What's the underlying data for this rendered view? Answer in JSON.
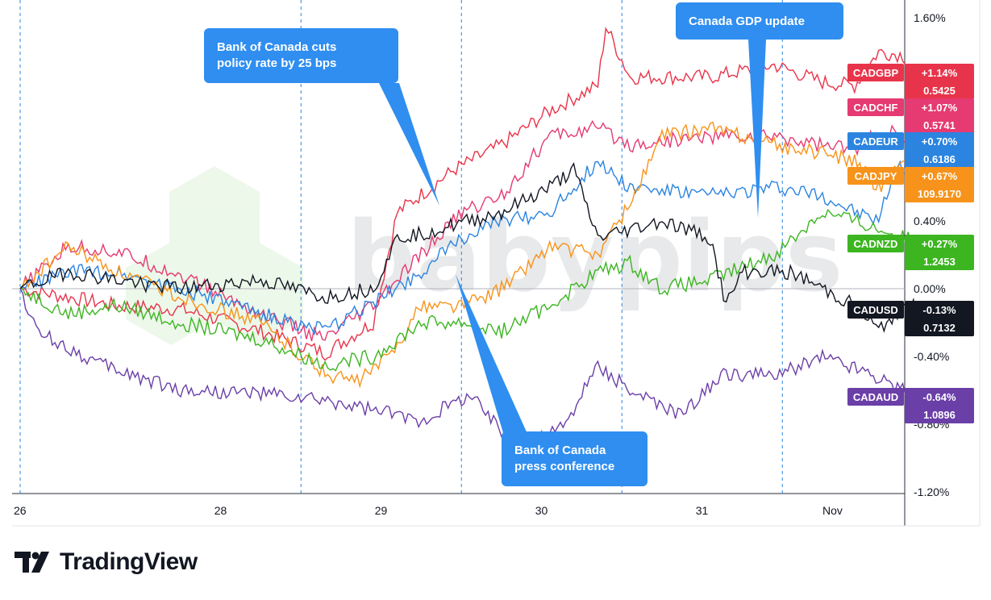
{
  "brand": {
    "name": "TradingView",
    "watermark": "babypips"
  },
  "chart_data": {
    "type": "line",
    "x_tick_labels": [
      "26",
      "28",
      "29",
      "30",
      "31",
      "Nov"
    ],
    "y_tick_labels": [
      "1.60%",
      "0.40%",
      "0.00%",
      "-0.40%",
      "-0.80%",
      "-1.20%"
    ],
    "y_ticks": [
      1.6,
      0.4,
      0.0,
      -0.4,
      -0.8,
      -1.2
    ],
    "ylim": [
      -1.2,
      1.6
    ],
    "event_days": [
      26,
      27.75,
      28.75,
      29.75,
      30.75
    ],
    "annotations": [
      {
        "text_line1": "Bank of Canada cuts",
        "text_line2": "policy rate by 25 bps"
      },
      {
        "text_line1": "Bank of Canada",
        "text_line2": "press conference"
      },
      {
        "text_line1": "Canada GDP update",
        "text_line2": ""
      }
    ],
    "series": [
      {
        "name": "CADGBP",
        "change": "+1.14%",
        "price": "0.5425",
        "color": "#e8344a",
        "values": [
          [
            26,
            0
          ],
          [
            26.3,
            -0.05
          ],
          [
            26.6,
            -0.1
          ],
          [
            27,
            -0.12
          ],
          [
            27.5,
            -0.25
          ],
          [
            27.9,
            -0.38
          ],
          [
            28.2,
            -0.2
          ],
          [
            28.35,
            0.45
          ],
          [
            28.7,
            0.7
          ],
          [
            29,
            0.85
          ],
          [
            29.3,
            1.05
          ],
          [
            29.6,
            1.2
          ],
          [
            29.65,
            1.55
          ],
          [
            29.8,
            1.25
          ],
          [
            30.3,
            1.25
          ],
          [
            30.7,
            1.32
          ],
          [
            31,
            1.22
          ],
          [
            31.2,
            1.2
          ],
          [
            31.35,
            1.4
          ],
          [
            31.5,
            1.38
          ],
          [
            31.7,
            1.14
          ]
        ]
      },
      {
        "name": "CADCHF",
        "change": "+1.07%",
        "price": "0.5741",
        "color": "#e53a72",
        "values": [
          [
            26,
            0
          ],
          [
            26.3,
            0.25
          ],
          [
            26.6,
            0.22
          ],
          [
            27,
            0.08
          ],
          [
            27.5,
            -0.15
          ],
          [
            27.9,
            -0.3
          ],
          [
            28.2,
            -0.1
          ],
          [
            28.5,
            0.2
          ],
          [
            28.75,
            0.45
          ],
          [
            29,
            0.55
          ],
          [
            29.3,
            0.9
          ],
          [
            29.6,
            0.95
          ],
          [
            29.8,
            0.85
          ],
          [
            30.3,
            0.9
          ],
          [
            30.7,
            0.9
          ],
          [
            31,
            0.85
          ],
          [
            31.2,
            0.82
          ],
          [
            31.4,
            0.95
          ],
          [
            31.5,
            0.85
          ],
          [
            31.7,
            1.07
          ]
        ]
      },
      {
        "name": "CADEUR",
        "change": "+0.70%",
        "price": "0.6186",
        "color": "#2b84e0",
        "values": [
          [
            26,
            0
          ],
          [
            26.3,
            0.1
          ],
          [
            26.6,
            0.1
          ],
          [
            27,
            0
          ],
          [
            27.5,
            -0.15
          ],
          [
            27.9,
            -0.25
          ],
          [
            28.2,
            -0.08
          ],
          [
            28.5,
            0.1
          ],
          [
            28.75,
            0.3
          ],
          [
            29,
            0.4
          ],
          [
            29.3,
            0.45
          ],
          [
            29.6,
            0.75
          ],
          [
            29.8,
            0.6
          ],
          [
            30.3,
            0.55
          ],
          [
            30.7,
            0.6
          ],
          [
            31,
            0.55
          ],
          [
            31.2,
            0.45
          ],
          [
            31.35,
            0.4
          ],
          [
            31.45,
            0.7
          ],
          [
            31.6,
            0.75
          ],
          [
            31.7,
            0.7
          ]
        ]
      },
      {
        "name": "CADJPY",
        "change": "+0.67%",
        "price": "109.9170",
        "color": "#f7931a",
        "values": [
          [
            26,
            0
          ],
          [
            26.3,
            0.25
          ],
          [
            26.6,
            0.1
          ],
          [
            27,
            -0.05
          ],
          [
            27.5,
            -0.2
          ],
          [
            27.9,
            -0.5
          ],
          [
            28.1,
            -0.55
          ],
          [
            28.3,
            -0.4
          ],
          [
            28.5,
            -0.1
          ],
          [
            28.75,
            -0.1
          ],
          [
            29,
            0
          ],
          [
            29.3,
            0.25
          ],
          [
            29.6,
            0.2
          ],
          [
            29.8,
            0.5
          ],
          [
            30,
            0.9
          ],
          [
            30.3,
            0.95
          ],
          [
            30.7,
            0.85
          ],
          [
            31,
            0.8
          ],
          [
            31.2,
            0.75
          ],
          [
            31.35,
            0.6
          ],
          [
            31.5,
            0.75
          ],
          [
            31.7,
            0.67
          ]
        ]
      },
      {
        "name": "CADNZD",
        "change": "+0.27%",
        "price": "1.2453",
        "color": "#3cb521",
        "values": [
          [
            26,
            0
          ],
          [
            26.3,
            -0.15
          ],
          [
            26.6,
            -0.1
          ],
          [
            27,
            -0.2
          ],
          [
            27.5,
            -0.3
          ],
          [
            27.9,
            -0.45
          ],
          [
            28.2,
            -0.4
          ],
          [
            28.5,
            -0.2
          ],
          [
            28.75,
            -0.2
          ],
          [
            29,
            -0.25
          ],
          [
            29.3,
            -0.1
          ],
          [
            29.6,
            0.1
          ],
          [
            29.8,
            0.15
          ],
          [
            30,
            0
          ],
          [
            30.3,
            0.05
          ],
          [
            30.7,
            0.2
          ],
          [
            31,
            0.45
          ],
          [
            31.2,
            0.4
          ],
          [
            31.35,
            0.35
          ],
          [
            31.5,
            0.3
          ],
          [
            31.7,
            0.27
          ]
        ]
      },
      {
        "name": "CADUSD",
        "change": "-0.13%",
        "price": "0.7132",
        "color": "#131722",
        "values": [
          [
            26,
            0
          ],
          [
            26.3,
            0.1
          ],
          [
            26.6,
            0.05
          ],
          [
            27,
            0
          ],
          [
            27.5,
            0.05
          ],
          [
            27.9,
            -0.05
          ],
          [
            28.2,
            0
          ],
          [
            28.35,
            0.3
          ],
          [
            28.6,
            0.35
          ],
          [
            29,
            0.45
          ],
          [
            29.3,
            0.6
          ],
          [
            29.45,
            0.7
          ],
          [
            29.6,
            0.3
          ],
          [
            30,
            0.4
          ],
          [
            30.3,
            0.3
          ],
          [
            30.4,
            -0.1
          ],
          [
            30.5,
            0.1
          ],
          [
            30.8,
            0.1
          ],
          [
            31,
            0
          ],
          [
            31.2,
            -0.1
          ],
          [
            31.35,
            -0.25
          ],
          [
            31.5,
            -0.1
          ],
          [
            31.7,
            -0.13
          ]
        ]
      },
      {
        "name": "CADAUD",
        "change": "-0.64%",
        "price": "1.0896",
        "color": "#6b3fa8",
        "values": [
          [
            26,
            0
          ],
          [
            26.1,
            -0.25
          ],
          [
            26.5,
            -0.45
          ],
          [
            27,
            -0.6
          ],
          [
            27.5,
            -0.62
          ],
          [
            28,
            -0.68
          ],
          [
            28.5,
            -0.78
          ],
          [
            28.8,
            -0.62
          ],
          [
            29.1,
            -0.95
          ],
          [
            29.4,
            -0.8
          ],
          [
            29.6,
            -0.45
          ],
          [
            29.8,
            -0.6
          ],
          [
            30.1,
            -0.75
          ],
          [
            30.4,
            -0.5
          ],
          [
            30.7,
            -0.52
          ],
          [
            31,
            -0.4
          ],
          [
            31.3,
            -0.5
          ],
          [
            31.5,
            -0.6
          ],
          [
            31.7,
            -0.64
          ]
        ]
      }
    ]
  }
}
